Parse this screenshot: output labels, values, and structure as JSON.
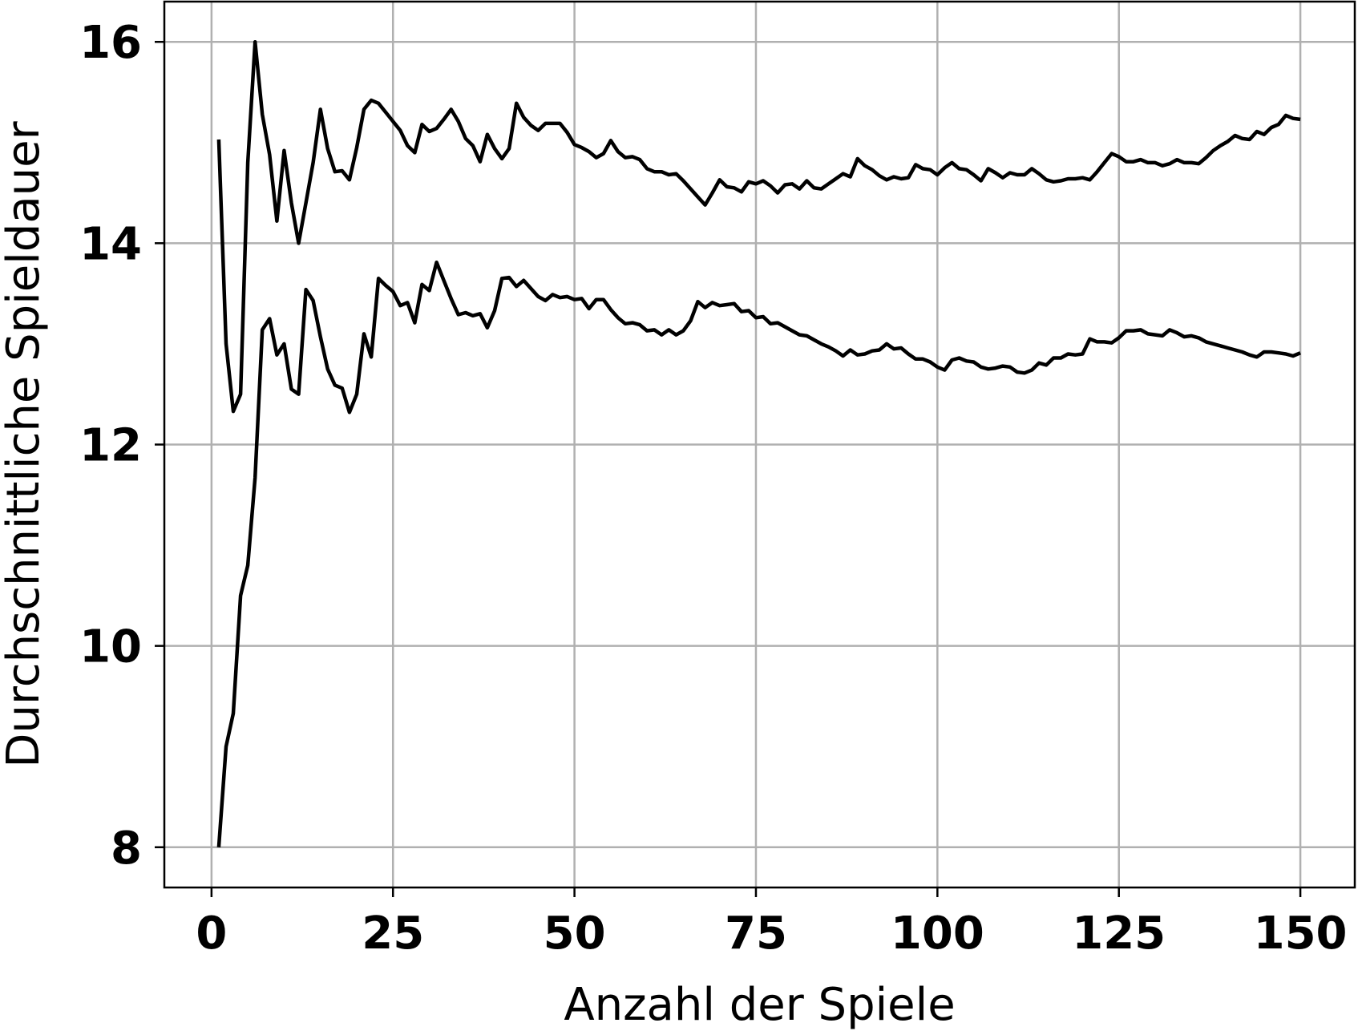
{
  "chart_data": {
    "type": "line",
    "title": "",
    "xlabel": "Anzahl der Spiele",
    "ylabel": "Durchschnittliche Spieldauer",
    "xlim": [
      -6.5,
      157.5
    ],
    "ylim": [
      7.6,
      16.4
    ],
    "xticks": [
      0,
      25,
      50,
      75,
      100,
      125,
      150
    ],
    "xtick_labels": [
      "0",
      "25",
      "50",
      "75",
      "100",
      "125",
      "150"
    ],
    "yticks": [
      8,
      10,
      12,
      14,
      16
    ],
    "ytick_labels": [
      "8",
      "10",
      "12",
      "14",
      "16"
    ],
    "grid": true,
    "legend": "none",
    "line_color": "#000000",
    "series": [
      {
        "points": [
          [
            1,
            15.03
          ],
          [
            2,
            13.0
          ],
          [
            3,
            12.33
          ],
          [
            4,
            12.5
          ],
          [
            5,
            14.8
          ],
          [
            6,
            16.0
          ],
          [
            7,
            15.28
          ],
          [
            8,
            14.88
          ],
          [
            9,
            14.22
          ],
          [
            10,
            14.92
          ],
          [
            11,
            14.4
          ],
          [
            12,
            14.0
          ],
          [
            13,
            14.4
          ],
          [
            14,
            14.8
          ],
          [
            15,
            15.33
          ],
          [
            16,
            14.94
          ],
          [
            17,
            14.71
          ],
          [
            18,
            14.72
          ],
          [
            19,
            14.63
          ],
          [
            20,
            14.95
          ],
          [
            21,
            15.33
          ],
          [
            22,
            15.42
          ],
          [
            23,
            15.39
          ],
          [
            24,
            15.3
          ],
          [
            25,
            15.21
          ],
          [
            26,
            15.12
          ],
          [
            27,
            14.97
          ],
          [
            28,
            14.9
          ],
          [
            29,
            15.18
          ],
          [
            30,
            15.11
          ],
          [
            31,
            15.14
          ],
          [
            32,
            15.23
          ],
          [
            33,
            15.33
          ],
          [
            34,
            15.21
          ],
          [
            35,
            15.04
          ],
          [
            36,
            14.97
          ],
          [
            37,
            14.81
          ],
          [
            38,
            15.08
          ],
          [
            39,
            14.94
          ],
          [
            40,
            14.84
          ],
          [
            41,
            14.94
          ],
          [
            42,
            15.39
          ],
          [
            43,
            15.25
          ],
          [
            44,
            15.17
          ],
          [
            45,
            15.12
          ],
          [
            46,
            15.19
          ],
          [
            47,
            15.19
          ],
          [
            48,
            15.19
          ],
          [
            49,
            15.1
          ],
          [
            50,
            14.98
          ],
          [
            51,
            14.95
          ],
          [
            52,
            14.91
          ],
          [
            53,
            14.85
          ],
          [
            54,
            14.89
          ],
          [
            55,
            15.02
          ],
          [
            56,
            14.91
          ],
          [
            57,
            14.85
          ],
          [
            58,
            14.86
          ],
          [
            59,
            14.83
          ],
          [
            60,
            14.74
          ],
          [
            61,
            14.71
          ],
          [
            62,
            14.71
          ],
          [
            63,
            14.68
          ],
          [
            64,
            14.69
          ],
          [
            65,
            14.62
          ],
          [
            66,
            14.54
          ],
          [
            67,
            14.46
          ],
          [
            68,
            14.38
          ],
          [
            69,
            14.5
          ],
          [
            70,
            14.63
          ],
          [
            71,
            14.56
          ],
          [
            72,
            14.55
          ],
          [
            73,
            14.51
          ],
          [
            74,
            14.61
          ],
          [
            75,
            14.59
          ],
          [
            76,
            14.62
          ],
          [
            77,
            14.57
          ],
          [
            78,
            14.5
          ],
          [
            79,
            14.58
          ],
          [
            80,
            14.59
          ],
          [
            81,
            14.54
          ],
          [
            82,
            14.62
          ],
          [
            83,
            14.55
          ],
          [
            84,
            14.54
          ],
          [
            85,
            14.59
          ],
          [
            86,
            14.64
          ],
          [
            87,
            14.69
          ],
          [
            88,
            14.66
          ],
          [
            89,
            14.84
          ],
          [
            90,
            14.77
          ],
          [
            91,
            14.73
          ],
          [
            92,
            14.67
          ],
          [
            93,
            14.63
          ],
          [
            94,
            14.66
          ],
          [
            95,
            14.64
          ],
          [
            96,
            14.65
          ],
          [
            97,
            14.78
          ],
          [
            98,
            14.74
          ],
          [
            99,
            14.73
          ],
          [
            100,
            14.68
          ],
          [
            101,
            14.75
          ],
          [
            102,
            14.8
          ],
          [
            103,
            14.74
          ],
          [
            104,
            14.73
          ],
          [
            105,
            14.68
          ],
          [
            106,
            14.62
          ],
          [
            107,
            14.74
          ],
          [
            108,
            14.7
          ],
          [
            109,
            14.65
          ],
          [
            110,
            14.7
          ],
          [
            111,
            14.68
          ],
          [
            112,
            14.68
          ],
          [
            113,
            14.74
          ],
          [
            114,
            14.69
          ],
          [
            115,
            14.63
          ],
          [
            116,
            14.61
          ],
          [
            117,
            14.62
          ],
          [
            118,
            14.64
          ],
          [
            119,
            14.64
          ],
          [
            120,
            14.65
          ],
          [
            121,
            14.63
          ],
          [
            122,
            14.71
          ],
          [
            123,
            14.8
          ],
          [
            124,
            14.89
          ],
          [
            125,
            14.86
          ],
          [
            126,
            14.81
          ],
          [
            127,
            14.81
          ],
          [
            128,
            14.83
          ],
          [
            129,
            14.8
          ],
          [
            130,
            14.8
          ],
          [
            131,
            14.77
          ],
          [
            132,
            14.79
          ],
          [
            133,
            14.83
          ],
          [
            134,
            14.8
          ],
          [
            135,
            14.8
          ],
          [
            136,
            14.79
          ],
          [
            137,
            14.85
          ],
          [
            138,
            14.92
          ],
          [
            139,
            14.97
          ],
          [
            140,
            15.01
          ],
          [
            141,
            15.07
          ],
          [
            142,
            15.04
          ],
          [
            143,
            15.03
          ],
          [
            144,
            15.11
          ],
          [
            145,
            15.08
          ],
          [
            146,
            15.15
          ],
          [
            147,
            15.18
          ],
          [
            148,
            15.27
          ],
          [
            149,
            15.24
          ],
          [
            150,
            15.23
          ]
        ]
      },
      {
        "points": [
          [
            1,
            8.0
          ],
          [
            2,
            9.0
          ],
          [
            3,
            9.33
          ],
          [
            4,
            10.5
          ],
          [
            5,
            10.8
          ],
          [
            6,
            11.67
          ],
          [
            7,
            13.14
          ],
          [
            8,
            13.25
          ],
          [
            9,
            12.89
          ],
          [
            10,
            13.0
          ],
          [
            11,
            12.55
          ],
          [
            12,
            12.5
          ],
          [
            13,
            13.54
          ],
          [
            14,
            13.43
          ],
          [
            15,
            13.07
          ],
          [
            16,
            12.75
          ],
          [
            17,
            12.59
          ],
          [
            18,
            12.56
          ],
          [
            19,
            12.32
          ],
          [
            20,
            12.5
          ],
          [
            21,
            13.1
          ],
          [
            22,
            12.87
          ],
          [
            23,
            13.65
          ],
          [
            24,
            13.58
          ],
          [
            25,
            13.52
          ],
          [
            26,
            13.38
          ],
          [
            27,
            13.41
          ],
          [
            28,
            13.21
          ],
          [
            29,
            13.59
          ],
          [
            30,
            13.53
          ],
          [
            31,
            13.81
          ],
          [
            32,
            13.63
          ],
          [
            33,
            13.45
          ],
          [
            34,
            13.29
          ],
          [
            35,
            13.31
          ],
          [
            36,
            13.28
          ],
          [
            37,
            13.3
          ],
          [
            38,
            13.16
          ],
          [
            39,
            13.33
          ],
          [
            40,
            13.65
          ],
          [
            41,
            13.66
          ],
          [
            42,
            13.57
          ],
          [
            43,
            13.63
          ],
          [
            44,
            13.55
          ],
          [
            45,
            13.47
          ],
          [
            46,
            13.43
          ],
          [
            47,
            13.49
          ],
          [
            48,
            13.46
          ],
          [
            49,
            13.47
          ],
          [
            50,
            13.44
          ],
          [
            51,
            13.45
          ],
          [
            52,
            13.35
          ],
          [
            53,
            13.44
          ],
          [
            54,
            13.44
          ],
          [
            55,
            13.34
          ],
          [
            56,
            13.26
          ],
          [
            57,
            13.2
          ],
          [
            58,
            13.21
          ],
          [
            59,
            13.19
          ],
          [
            60,
            13.13
          ],
          [
            61,
            13.14
          ],
          [
            62,
            13.09
          ],
          [
            63,
            13.14
          ],
          [
            64,
            13.09
          ],
          [
            65,
            13.13
          ],
          [
            66,
            13.23
          ],
          [
            67,
            13.42
          ],
          [
            68,
            13.36
          ],
          [
            69,
            13.41
          ],
          [
            70,
            13.38
          ],
          [
            71,
            13.39
          ],
          [
            72,
            13.4
          ],
          [
            73,
            13.32
          ],
          [
            74,
            13.33
          ],
          [
            75,
            13.26
          ],
          [
            76,
            13.27
          ],
          [
            77,
            13.2
          ],
          [
            78,
            13.21
          ],
          [
            79,
            13.17
          ],
          [
            80,
            13.13
          ],
          [
            81,
            13.09
          ],
          [
            82,
            13.08
          ],
          [
            83,
            13.04
          ],
          [
            84,
            13.0
          ],
          [
            85,
            12.97
          ],
          [
            86,
            12.93
          ],
          [
            87,
            12.88
          ],
          [
            88,
            12.94
          ],
          [
            89,
            12.89
          ],
          [
            90,
            12.9
          ],
          [
            91,
            12.93
          ],
          [
            92,
            12.94
          ],
          [
            93,
            13.0
          ],
          [
            94,
            12.95
          ],
          [
            95,
            12.96
          ],
          [
            96,
            12.9
          ],
          [
            97,
            12.85
          ],
          [
            98,
            12.85
          ],
          [
            99,
            12.82
          ],
          [
            100,
            12.77
          ],
          [
            101,
            12.74
          ],
          [
            102,
            12.84
          ],
          [
            103,
            12.86
          ],
          [
            104,
            12.83
          ],
          [
            105,
            12.82
          ],
          [
            106,
            12.77
          ],
          [
            107,
            12.75
          ],
          [
            108,
            12.76
          ],
          [
            109,
            12.78
          ],
          [
            110,
            12.77
          ],
          [
            111,
            12.72
          ],
          [
            112,
            12.71
          ],
          [
            113,
            12.74
          ],
          [
            114,
            12.81
          ],
          [
            115,
            12.79
          ],
          [
            116,
            12.86
          ],
          [
            117,
            12.86
          ],
          [
            118,
            12.9
          ],
          [
            119,
            12.89
          ],
          [
            120,
            12.9
          ],
          [
            121,
            13.05
          ],
          [
            122,
            13.02
          ],
          [
            123,
            13.02
          ],
          [
            124,
            13.01
          ],
          [
            125,
            13.06
          ],
          [
            126,
            13.13
          ],
          [
            127,
            13.13
          ],
          [
            128,
            13.14
          ],
          [
            129,
            13.1
          ],
          [
            130,
            13.09
          ],
          [
            131,
            13.08
          ],
          [
            132,
            13.14
          ],
          [
            133,
            13.11
          ],
          [
            134,
            13.07
          ],
          [
            135,
            13.08
          ],
          [
            136,
            13.06
          ],
          [
            137,
            13.02
          ],
          [
            138,
            13.0
          ],
          [
            139,
            12.98
          ],
          [
            140,
            12.96
          ],
          [
            141,
            12.94
          ],
          [
            142,
            12.92
          ],
          [
            143,
            12.89
          ],
          [
            144,
            12.87
          ],
          [
            145,
            12.92
          ],
          [
            146,
            12.92
          ],
          [
            147,
            12.91
          ],
          [
            148,
            12.9
          ],
          [
            149,
            12.88
          ],
          [
            150,
            12.91
          ]
        ]
      }
    ]
  }
}
